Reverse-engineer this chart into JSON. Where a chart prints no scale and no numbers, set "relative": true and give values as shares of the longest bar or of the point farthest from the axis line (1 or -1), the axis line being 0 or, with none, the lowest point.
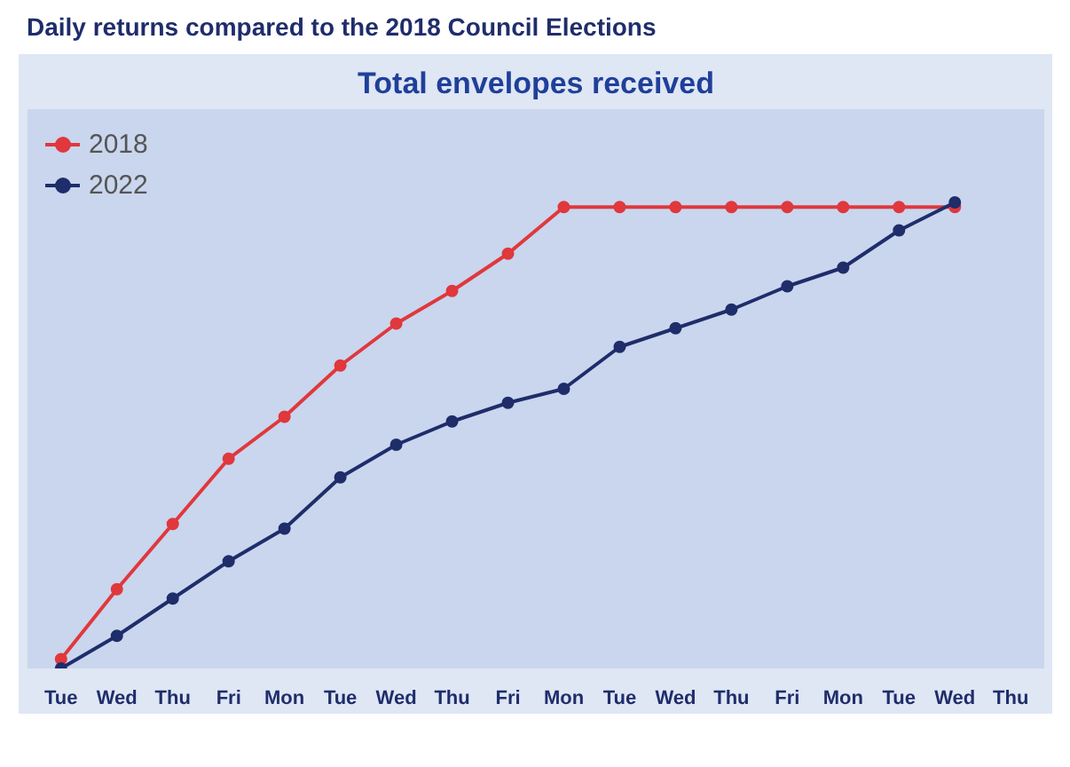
{
  "chart_data": {
    "type": "line",
    "title": "Total envelopes received",
    "annotations": [
      "Daily returns compared to the 2018 Council Elections"
    ],
    "categories": [
      "Tue",
      "Wed",
      "Thu",
      "Fri",
      "Mon",
      "Tue",
      "Wed",
      "Thu",
      "Fri",
      "Mon",
      "Tue",
      "Wed",
      "Thu",
      "Fri",
      "Mon",
      "Tue",
      "Wed",
      "Thu"
    ],
    "relative": true,
    "legend": "top left",
    "marker": "circle",
    "line_style": "solid",
    "series": [
      {
        "name": "2018",
        "color": "#e0383c",
        "values": [
          0.02,
          0.17,
          0.31,
          0.45,
          0.54,
          0.65,
          0.74,
          0.81,
          0.89,
          0.99,
          0.99,
          0.99,
          0.99,
          0.99,
          0.99,
          0.99,
          0.99,
          null
        ]
      },
      {
        "name": "2022",
        "color": "#1f2d6b",
        "values": [
          0.0,
          0.07,
          0.15,
          0.23,
          0.3,
          0.41,
          0.48,
          0.53,
          0.57,
          0.6,
          0.69,
          0.73,
          0.77,
          0.82,
          0.86,
          0.94,
          1.0,
          null
        ]
      }
    ]
  }
}
